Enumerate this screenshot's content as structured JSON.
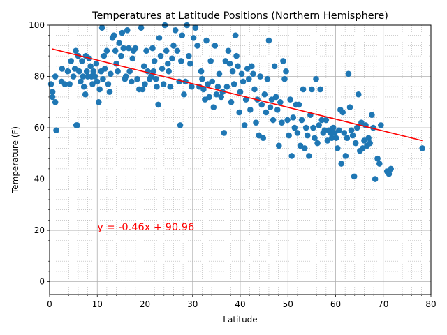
{
  "chart_data": {
    "type": "scatter",
    "title": "Temperatures at Latitude Positions (Northern Hemisphere)",
    "xlabel": "Latitude",
    "ylabel": "Temperature (F)",
    "xlim": [
      0,
      80
    ],
    "ylim": [
      -5,
      100
    ],
    "xticks": [
      "0",
      "10",
      "20",
      "30",
      "40",
      "50",
      "60",
      "70",
      "80"
    ],
    "yticks": [
      "0",
      "20",
      "40",
      "60",
      "80",
      "100"
    ],
    "grid": true,
    "point_color": "#1f77b4",
    "regression": {
      "slope": -0.46,
      "intercept": 90.96,
      "x_range": [
        0.5,
        78.2
      ],
      "color": "#ff0000",
      "equation_label": "y = -0.46x + 90.96",
      "label_x": 10,
      "label_y": 20
    },
    "series": [
      {
        "points": [
          [
            0.3,
            77
          ],
          [
            0.6,
            74
          ],
          [
            0.6,
            72
          ],
          [
            1.2,
            80
          ],
          [
            1.2,
            70
          ],
          [
            1.4,
            59
          ],
          [
            2.5,
            78
          ],
          [
            2.6,
            83
          ],
          [
            3.2,
            77
          ],
          [
            3.8,
            82
          ],
          [
            4.2,
            77
          ],
          [
            4.5,
            86
          ],
          [
            5.0,
            80
          ],
          [
            5.3,
            83
          ],
          [
            5.5,
            90
          ],
          [
            5.6,
            61
          ],
          [
            5.8,
            61
          ],
          [
            6.0,
            88
          ],
          [
            6.2,
            82
          ],
          [
            6.5,
            78
          ],
          [
            6.8,
            86
          ],
          [
            7.0,
            80
          ],
          [
            7.2,
            76
          ],
          [
            7.5,
            73
          ],
          [
            7.6,
            88
          ],
          [
            7.8,
            82
          ],
          [
            8.0,
            80
          ],
          [
            8.3,
            87
          ],
          [
            8.6,
            84
          ],
          [
            8.8,
            80
          ],
          [
            9.0,
            77
          ],
          [
            9.2,
            82
          ],
          [
            9.5,
            80
          ],
          [
            9.8,
            85
          ],
          [
            10.0,
            78
          ],
          [
            10.3,
            70
          ],
          [
            10.5,
            75
          ],
          [
            10.8,
            82
          ],
          [
            11.0,
            99
          ],
          [
            11.2,
            79
          ],
          [
            11.4,
            88
          ],
          [
            11.6,
            83
          ],
          [
            12.0,
            90
          ],
          [
            12.3,
            77
          ],
          [
            12.6,
            74
          ],
          [
            12.8,
            81
          ],
          [
            13.2,
            95
          ],
          [
            13.5,
            96
          ],
          [
            13.8,
            90
          ],
          [
            14.0,
            85
          ],
          [
            14.3,
            82
          ],
          [
            14.6,
            93
          ],
          [
            15.0,
            88
          ],
          [
            15.2,
            97
          ],
          [
            15.5,
            91
          ],
          [
            15.8,
            79
          ],
          [
            16.0,
            80
          ],
          [
            16.3,
            98
          ],
          [
            16.6,
            91
          ],
          [
            16.8,
            82
          ],
          [
            17.2,
            78
          ],
          [
            17.4,
            87
          ],
          [
            17.6,
            90
          ],
          [
            18.0,
            91
          ],
          [
            18.4,
            79
          ],
          [
            18.8,
            75
          ],
          [
            19.2,
            99
          ],
          [
            19.5,
            75
          ],
          [
            19.8,
            84
          ],
          [
            20.0,
            77
          ],
          [
            20.3,
            90
          ],
          [
            20.6,
            82
          ],
          [
            21.0,
            79
          ],
          [
            21.3,
            80
          ],
          [
            21.6,
            91
          ],
          [
            21.8,
            82
          ],
          [
            22.0,
            86
          ],
          [
            22.3,
            79
          ],
          [
            22.5,
            76
          ],
          [
            22.8,
            69
          ],
          [
            23.0,
            95
          ],
          [
            23.3,
            88
          ],
          [
            23.6,
            83
          ],
          [
            23.9,
            77
          ],
          [
            24.2,
            100
          ],
          [
            24.5,
            90
          ],
          [
            24.8,
            85
          ],
          [
            25.0,
            82
          ],
          [
            25.3,
            76
          ],
          [
            25.7,
            87
          ],
          [
            26.0,
            92
          ],
          [
            26.4,
            98
          ],
          [
            26.8,
            90
          ],
          [
            27.2,
            78
          ],
          [
            27.4,
            61
          ],
          [
            27.6,
            86
          ],
          [
            27.8,
            96
          ],
          [
            28.2,
            73
          ],
          [
            28.5,
            78
          ],
          [
            28.8,
            100
          ],
          [
            29.2,
            88
          ],
          [
            29.5,
            85
          ],
          [
            29.8,
            76
          ],
          [
            30.2,
            95
          ],
          [
            30.6,
            99
          ],
          [
            31.0,
            92
          ],
          [
            31.4,
            76
          ],
          [
            31.8,
            82
          ],
          [
            32.0,
            79
          ],
          [
            32.3,
            75
          ],
          [
            32.6,
            71
          ],
          [
            32.9,
            94
          ],
          [
            33.2,
            77
          ],
          [
            33.5,
            72
          ],
          [
            33.8,
            86
          ],
          [
            34.1,
            78
          ],
          [
            34.4,
            68
          ],
          [
            34.7,
            92
          ],
          [
            35.0,
            73
          ],
          [
            35.3,
            76
          ],
          [
            35.6,
            81
          ],
          [
            36.0,
            72
          ],
          [
            36.3,
            74
          ],
          [
            36.6,
            58
          ],
          [
            36.9,
            86
          ],
          [
            37.2,
            76
          ],
          [
            37.5,
            90
          ],
          [
            37.8,
            85
          ],
          [
            38.1,
            70
          ],
          [
            38.4,
            82
          ],
          [
            38.7,
            77
          ],
          [
            39.0,
            96
          ],
          [
            39.2,
            88
          ],
          [
            39.5,
            84
          ],
          [
            39.8,
            66
          ],
          [
            40.0,
            74
          ],
          [
            40.3,
            81
          ],
          [
            40.6,
            78
          ],
          [
            40.9,
            61
          ],
          [
            41.2,
            71
          ],
          [
            41.5,
            83
          ],
          [
            41.8,
            79
          ],
          [
            42.1,
            67
          ],
          [
            42.4,
            84
          ],
          [
            42.7,
            81
          ],
          [
            43.0,
            75
          ],
          [
            43.3,
            62
          ],
          [
            43.6,
            71
          ],
          [
            43.9,
            57
          ],
          [
            44.2,
            80
          ],
          [
            44.5,
            69
          ],
          [
            44.8,
            56
          ],
          [
            45.1,
            73
          ],
          [
            45.4,
            66
          ],
          [
            45.7,
            79
          ],
          [
            46.0,
            94
          ],
          [
            46.3,
            68
          ],
          [
            46.6,
            71
          ],
          [
            46.9,
            63
          ],
          [
            47.2,
            84
          ],
          [
            47.5,
            72
          ],
          [
            47.8,
            67
          ],
          [
            48.1,
            53
          ],
          [
            48.4,
            70
          ],
          [
            48.7,
            62
          ],
          [
            49.0,
            86
          ],
          [
            49.3,
            79
          ],
          [
            49.6,
            82
          ],
          [
            49.9,
            63
          ],
          [
            50.2,
            57
          ],
          [
            50.5,
            71
          ],
          [
            50.8,
            49
          ],
          [
            51.1,
            64
          ],
          [
            51.4,
            60
          ],
          [
            51.7,
            69
          ],
          [
            52.0,
            58
          ],
          [
            52.3,
            69
          ],
          [
            52.6,
            53
          ],
          [
            52.9,
            63
          ],
          [
            53.2,
            75
          ],
          [
            53.5,
            52
          ],
          [
            53.8,
            60
          ],
          [
            54.1,
            57
          ],
          [
            54.4,
            49
          ],
          [
            54.7,
            65
          ],
          [
            55.0,
            75
          ],
          [
            55.3,
            60
          ],
          [
            55.6,
            56
          ],
          [
            55.9,
            79
          ],
          [
            56.2,
            54
          ],
          [
            56.5,
            61
          ],
          [
            56.8,
            75
          ],
          [
            57.1,
            63
          ],
          [
            57.4,
            58
          ],
          [
            57.7,
            59
          ],
          [
            58.0,
            63
          ],
          [
            58.3,
            55
          ],
          [
            58.6,
            59
          ],
          [
            58.9,
            58
          ],
          [
            59.2,
            56
          ],
          [
            59.5,
            60
          ],
          [
            59.8,
            58
          ],
          [
            60.1,
            56
          ],
          [
            60.4,
            52
          ],
          [
            60.7,
            59
          ],
          [
            61.0,
            67
          ],
          [
            61.2,
            46
          ],
          [
            61.5,
            66
          ],
          [
            61.8,
            58
          ],
          [
            62.1,
            49
          ],
          [
            62.4,
            56
          ],
          [
            62.7,
            81
          ],
          [
            63.0,
            68
          ],
          [
            63.3,
            59
          ],
          [
            63.6,
            57
          ],
          [
            63.9,
            41
          ],
          [
            64.2,
            54
          ],
          [
            64.5,
            60
          ],
          [
            64.8,
            73
          ],
          [
            65.1,
            51
          ],
          [
            65.4,
            62
          ],
          [
            65.7,
            52
          ],
          [
            66.0,
            55
          ],
          [
            66.3,
            61
          ],
          [
            66.6,
            53
          ],
          [
            66.9,
            56
          ],
          [
            67.2,
            54
          ],
          [
            67.6,
            65
          ],
          [
            67.9,
            60
          ],
          [
            68.3,
            40
          ],
          [
            68.8,
            48
          ],
          [
            69.2,
            46
          ],
          [
            69.5,
            61
          ],
          [
            70.8,
            43
          ],
          [
            71.2,
            42
          ],
          [
            71.6,
            44
          ],
          [
            78.2,
            52
          ]
        ]
      }
    ]
  }
}
